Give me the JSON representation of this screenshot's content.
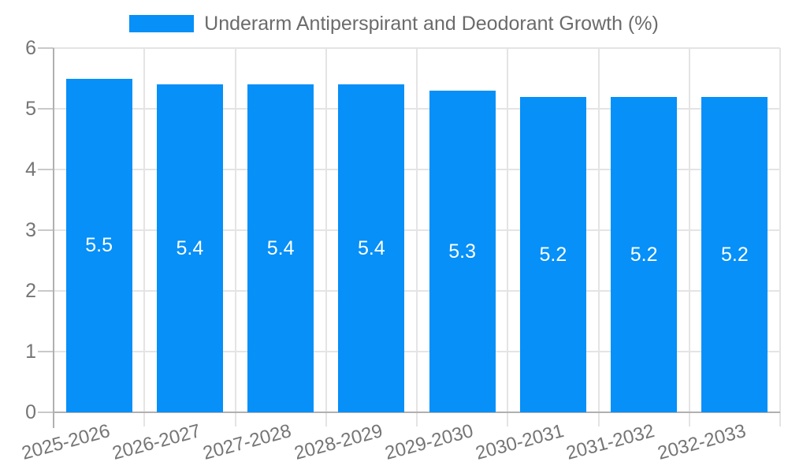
{
  "chart_data": {
    "type": "bar",
    "title": "",
    "legend": {
      "position": "top",
      "entries": [
        "Underarm Antiperspirant and Deodorant Growth (%)"
      ]
    },
    "categories": [
      "2025-2026",
      "2026-2027",
      "2027-2028",
      "2028-2029",
      "2029-2030",
      "2030-2031",
      "2031-2032",
      "2032-2033"
    ],
    "values": [
      5.5,
      5.4,
      5.4,
      5.4,
      5.3,
      5.2,
      5.2,
      5.2
    ],
    "bar_labels": [
      "5.5",
      "5.4",
      "5.4",
      "5.4",
      "5.3",
      "5.2",
      "5.2",
      "5.2"
    ],
    "xlabel": "",
    "ylabel": "",
    "ylim": [
      0,
      6
    ],
    "yticks": [
      0,
      1,
      2,
      3,
      4,
      5,
      6
    ],
    "grid": "horizontal and vertical light gray gridlines, gray x/y axis lines with outside ticks",
    "x_tick_label_rotation_deg": -15,
    "colors": {
      "bar": "#0690f8",
      "bar_label_text": "#ffffff",
      "grid": "#e4e4e4",
      "axis": "#b0b0b0",
      "tick": "#c9c9c9",
      "axis_label_text": "#757575",
      "legend_text": "#6b6b6b",
      "background": "#ffffff"
    }
  }
}
